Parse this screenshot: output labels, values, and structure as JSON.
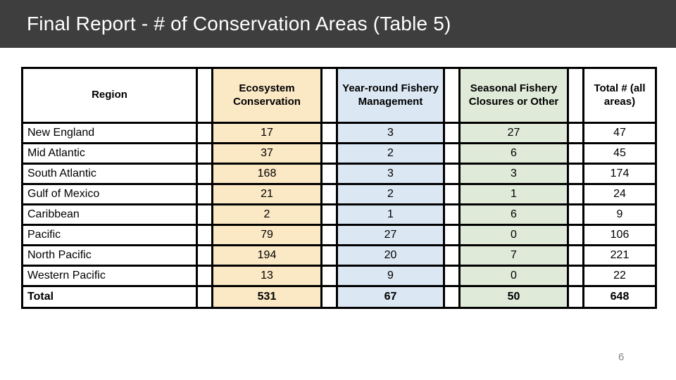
{
  "slide": {
    "title": "Final Report - # of Conservation Areas (Table 5)",
    "page_number": "6"
  },
  "colors": {
    "title_bar_bg": "#3E3E3E",
    "title_text": "#FFFFFF",
    "tan": "#FBE8C4",
    "blue": "#DBE7F3",
    "green": "#DFEAD9",
    "border": "#000000",
    "page_number": "#848484"
  },
  "table": {
    "columns": [
      {
        "key": "region",
        "label": "Region",
        "bg": "white"
      },
      {
        "key": "ecosystem",
        "label": "Ecosystem Conservation",
        "bg": "tan"
      },
      {
        "key": "yearround",
        "label": "Year-round Fishery Management",
        "bg": "blue"
      },
      {
        "key": "seasonal",
        "label": "Seasonal Fishery Closures or Other",
        "bg": "green"
      },
      {
        "key": "total",
        "label": "Total # (all areas)",
        "bg": "white"
      }
    ],
    "rows": [
      {
        "region": "New England",
        "ecosystem": "17",
        "yearround": "3",
        "seasonal": "27",
        "total": "47"
      },
      {
        "region": "Mid Atlantic",
        "ecosystem": "37",
        "yearround": "2",
        "seasonal": "6",
        "total": "45"
      },
      {
        "region": "South Atlantic",
        "ecosystem": "168",
        "yearround": "3",
        "seasonal": "3",
        "total": "174"
      },
      {
        "region": "Gulf of Mexico",
        "ecosystem": "21",
        "yearround": "2",
        "seasonal": "1",
        "total": "24"
      },
      {
        "region": "Caribbean",
        "ecosystem": "2",
        "yearround": "1",
        "seasonal": "6",
        "total": "9"
      },
      {
        "region": "Pacific",
        "ecosystem": "79",
        "yearround": "27",
        "seasonal": "0",
        "total": "106"
      },
      {
        "region": "North Pacific",
        "ecosystem": "194",
        "yearround": "20",
        "seasonal": "7",
        "total": "221"
      },
      {
        "region": "Western Pacific",
        "ecosystem": "13",
        "yearround": "9",
        "seasonal": "0",
        "total": "22"
      }
    ],
    "total_row": {
      "region": "Total",
      "ecosystem": "531",
      "yearround": "67",
      "seasonal": "50",
      "total": "648"
    }
  },
  "chart_data": {
    "type": "table",
    "title": "Final Report - # of Conservation Areas (Table 5)",
    "columns": [
      "Region",
      "Ecosystem Conservation",
      "Year-round Fishery Management",
      "Seasonal Fishery Closures or Other",
      "Total # (all areas)"
    ],
    "rows": [
      [
        "New England",
        17,
        3,
        27,
        47
      ],
      [
        "Mid Atlantic",
        37,
        2,
        6,
        45
      ],
      [
        "South Atlantic",
        168,
        3,
        3,
        174
      ],
      [
        "Gulf of Mexico",
        21,
        2,
        1,
        24
      ],
      [
        "Caribbean",
        2,
        1,
        6,
        9
      ],
      [
        "Pacific",
        79,
        27,
        0,
        106
      ],
      [
        "North Pacific",
        194,
        20,
        7,
        221
      ],
      [
        "Western Pacific",
        13,
        9,
        0,
        22
      ],
      [
        "Total",
        531,
        67,
        50,
        648
      ]
    ]
  }
}
